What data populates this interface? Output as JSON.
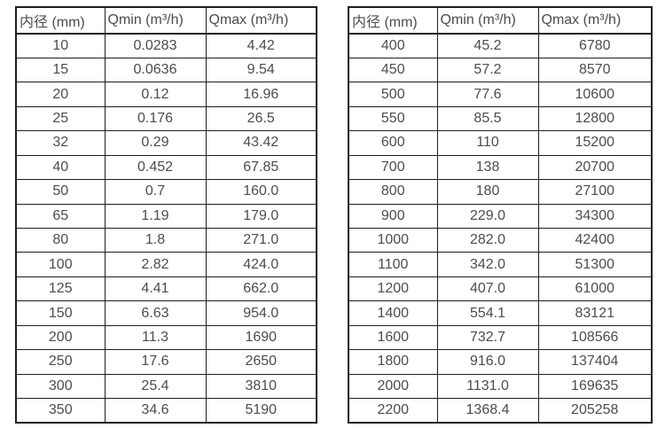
{
  "colors": {
    "background": "#ffffff",
    "table_border": "#1e1e1e",
    "text": "#4c4c4c"
  },
  "chart_data": [
    {
      "type": "table",
      "name": "flow-spec-small-diameters",
      "columns": [
        "内径 (mm)",
        "Qmin (m³/h)",
        "Qmax (m³/h)"
      ],
      "rows": [
        [
          "10",
          "0.0283",
          "4.42"
        ],
        [
          "15",
          "0.0636",
          "9.54"
        ],
        [
          "20",
          "0.12",
          "16.96"
        ],
        [
          "25",
          "0.176",
          "26.5"
        ],
        [
          "32",
          "0.29",
          "43.42"
        ],
        [
          "40",
          "0.452",
          "67.85"
        ],
        [
          "50",
          "0.7",
          "160.0"
        ],
        [
          "65",
          "1.19",
          "179.0"
        ],
        [
          "80",
          "1.8",
          "271.0"
        ],
        [
          "100",
          "2.82",
          "424.0"
        ],
        [
          "125",
          "4.41",
          "662.0"
        ],
        [
          "150",
          "6.63",
          "954.0"
        ],
        [
          "200",
          "11.3",
          "1690"
        ],
        [
          "250",
          "17.6",
          "2650"
        ],
        [
          "300",
          "25.4",
          "3810"
        ],
        [
          "350",
          "34.6",
          "5190"
        ]
      ]
    },
    {
      "type": "table",
      "name": "flow-spec-large-diameters",
      "columns": [
        "内径 (mm)",
        "Qmin (m³/h)",
        "Qmax (m³/h)"
      ],
      "rows": [
        [
          "400",
          "45.2",
          "6780"
        ],
        [
          "450",
          "57.2",
          "8570"
        ],
        [
          "500",
          "77.6",
          "10600"
        ],
        [
          "550",
          "85.5",
          "12800"
        ],
        [
          "600",
          "110",
          "15200"
        ],
        [
          "700",
          "138",
          "20700"
        ],
        [
          "800",
          "180",
          "27100"
        ],
        [
          "900",
          "229.0",
          "34300"
        ],
        [
          "1000",
          "282.0",
          "42400"
        ],
        [
          "1100",
          "342.0",
          "51300"
        ],
        [
          "1200",
          "407.0",
          "61000"
        ],
        [
          "1400",
          "554.1",
          "83121"
        ],
        [
          "1600",
          "732.7",
          "108566"
        ],
        [
          "1800",
          "916.0",
          "137404"
        ],
        [
          "2000",
          "1131.0",
          "169635"
        ],
        [
          "2200",
          "1368.4",
          "205258"
        ]
      ]
    }
  ]
}
